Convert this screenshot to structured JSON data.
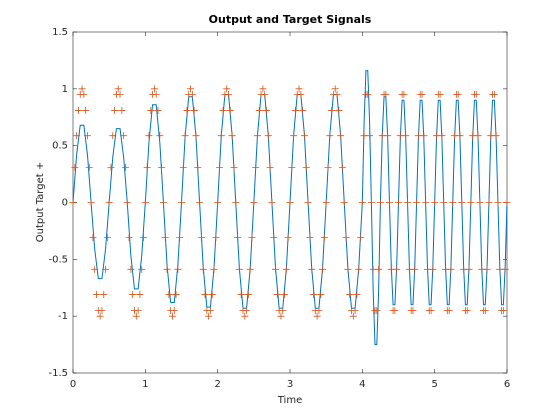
{
  "chart_data": {
    "type": "line",
    "title": "Output and Target Signals",
    "xlabel": "Time",
    "ylabel": "Output   Target +",
    "xlim": [
      0,
      6
    ],
    "ylim": [
      -1.5,
      1.5
    ],
    "xticks": [
      0,
      1,
      2,
      3,
      4,
      5,
      6
    ],
    "yticks": [
      -1.5,
      -1,
      -0.5,
      0,
      0.5,
      1,
      1.5
    ],
    "series": [
      {
        "color": "#0072bd",
        "marker": "none",
        "x": [
          0,
          0.05,
          0.1,
          0.15,
          0.2,
          0.25,
          0.3,
          0.35,
          0.4,
          0.45,
          0.5,
          0.55,
          0.6,
          0.65,
          0.7,
          0.75,
          0.8,
          0.85,
          0.9,
          0.95,
          1,
          1.05,
          1.1,
          1.15,
          1.2,
          1.25,
          1.3,
          1.35,
          1.4,
          1.45,
          1.5,
          1.55,
          1.6,
          1.65,
          1.7,
          1.75,
          1.8,
          1.85,
          1.9,
          1.95,
          2,
          2.05,
          2.1,
          2.15,
          2.2,
          2.25,
          2.3,
          2.35,
          2.4,
          2.45,
          2.5,
          2.55,
          2.6,
          2.65,
          2.7,
          2.75,
          2.8,
          2.85,
          2.9,
          2.95,
          3,
          3.05,
          3.1,
          3.15,
          3.2,
          3.25,
          3.3,
          3.35,
          3.4,
          3.45,
          3.5,
          3.55,
          3.6,
          3.65,
          3.7,
          3.75,
          3.8,
          3.85,
          3.9,
          3.95,
          4,
          4.025,
          4.05,
          4.075,
          4.1,
          4.125,
          4.15,
          4.175,
          4.2,
          4.225,
          4.25,
          4.275,
          4.3,
          4.325,
          4.35,
          4.375,
          4.4,
          4.425,
          4.45,
          4.475,
          4.5,
          4.525,
          4.55,
          4.575,
          4.6,
          4.625,
          4.65,
          4.675,
          4.7,
          4.725,
          4.75,
          4.775,
          4.8,
          4.825,
          4.85,
          4.875,
          4.9,
          4.925,
          4.95,
          4.975,
          5,
          5.025,
          5.05,
          5.075,
          5.1,
          5.125,
          5.15,
          5.175,
          5.2,
          5.225,
          5.25,
          5.275,
          5.3,
          5.325,
          5.35,
          5.375,
          5.4,
          5.425,
          5.45,
          5.475,
          5.5,
          5.525,
          5.55,
          5.575,
          5.6,
          5.625,
          5.65,
          5.675,
          5.7,
          5.725,
          5.75,
          5.775,
          5.8,
          5.825,
          5.85,
          5.875,
          5.9,
          5.925,
          5.95,
          5.975,
          6
        ],
        "values": [
          0,
          0.42,
          0.68,
          0.68,
          0.42,
          0,
          -0.41,
          -0.67,
          -0.67,
          -0.41,
          0,
          0.4,
          0.65,
          0.65,
          0.4,
          0,
          -0.47,
          -0.76,
          -0.76,
          -0.47,
          0,
          0.53,
          0.86,
          0.86,
          0.53,
          0,
          -0.55,
          -0.88,
          -0.88,
          -0.55,
          0,
          0.58,
          0.93,
          0.93,
          0.58,
          0,
          -0.57,
          -0.92,
          -0.92,
          -0.57,
          0,
          0.59,
          0.95,
          0.95,
          0.59,
          0,
          -0.58,
          -0.93,
          -0.93,
          -0.58,
          0,
          0.59,
          0.95,
          0.95,
          0.59,
          0,
          -0.58,
          -0.93,
          -0.93,
          -0.58,
          0,
          0.59,
          0.95,
          0.95,
          0.59,
          0,
          -0.58,
          -0.93,
          -0.93,
          -0.58,
          0,
          0.59,
          0.95,
          0.95,
          0.59,
          0,
          -0.58,
          -0.93,
          -0.93,
          -0.58,
          0,
          0.72,
          1.16,
          1.16,
          0.72,
          0,
          -0.78,
          -1.25,
          -1.25,
          -0.78,
          0,
          0.58,
          0.93,
          0.93,
          0.58,
          0,
          -0.56,
          -0.9,
          -0.9,
          -0.56,
          0,
          0.56,
          0.9,
          0.9,
          0.56,
          0,
          -0.56,
          -0.9,
          -0.9,
          -0.56,
          0,
          0.56,
          0.9,
          0.9,
          0.56,
          0,
          -0.56,
          -0.9,
          -0.9,
          -0.56,
          0,
          0.56,
          0.9,
          0.9,
          0.56,
          0,
          -0.56,
          -0.9,
          -0.9,
          -0.56,
          0,
          0.56,
          0.9,
          0.9,
          0.56,
          0,
          -0.56,
          -0.9,
          -0.9,
          -0.56,
          0,
          0.56,
          0.9,
          0.9,
          0.56,
          0,
          -0.56,
          -0.9,
          -0.9,
          -0.56,
          0,
          0.56,
          0.9,
          0.9,
          0.56,
          0,
          -0.56,
          -0.9,
          -0.9,
          -0.56,
          0
        ]
      },
      {
        "color": "#d95319",
        "marker": "+",
        "x": [
          0,
          0.025,
          0.05,
          0.075,
          0.1,
          0.125,
          0.15,
          0.175,
          0.2,
          0.225,
          0.25,
          0.275,
          0.3,
          0.325,
          0.35,
          0.375,
          0.4,
          0.425,
          0.45,
          0.475,
          0.5,
          0.525,
          0.55,
          0.575,
          0.6,
          0.625,
          0.65,
          0.675,
          0.7,
          0.725,
          0.75,
          0.775,
          0.8,
          0.825,
          0.85,
          0.875,
          0.9,
          0.925,
          0.95,
          0.975,
          1,
          1.025,
          1.05,
          1.075,
          1.1,
          1.125,
          1.15,
          1.175,
          1.2,
          1.225,
          1.25,
          1.275,
          1.3,
          1.325,
          1.35,
          1.375,
          1.4,
          1.425,
          1.45,
          1.475,
          1.5,
          1.525,
          1.55,
          1.575,
          1.6,
          1.625,
          1.65,
          1.675,
          1.7,
          1.725,
          1.75,
          1.775,
          1.8,
          1.825,
          1.85,
          1.875,
          1.9,
          1.925,
          1.95,
          1.975,
          2,
          2.025,
          2.05,
          2.075,
          2.1,
          2.125,
          2.15,
          2.175,
          2.2,
          2.225,
          2.25,
          2.275,
          2.3,
          2.325,
          2.35,
          2.375,
          2.4,
          2.425,
          2.45,
          2.475,
          2.5,
          2.525,
          2.55,
          2.575,
          2.6,
          2.625,
          2.65,
          2.675,
          2.7,
          2.725,
          2.75,
          2.775,
          2.8,
          2.825,
          2.85,
          2.875,
          2.9,
          2.925,
          2.95,
          2.975,
          3,
          3.025,
          3.05,
          3.075,
          3.1,
          3.125,
          3.15,
          3.175,
          3.2,
          3.225,
          3.25,
          3.275,
          3.3,
          3.325,
          3.35,
          3.375,
          3.4,
          3.425,
          3.45,
          3.475,
          3.5,
          3.525,
          3.55,
          3.575,
          3.6,
          3.625,
          3.65,
          3.675,
          3.7,
          3.725,
          3.75,
          3.775,
          3.8,
          3.825,
          3.85,
          3.875,
          3.9,
          3.925,
          3.95,
          3.975,
          4,
          4.025,
          4.05,
          4.075,
          4.1,
          4.125,
          4.15,
          4.175,
          4.2,
          4.225,
          4.25,
          4.275,
          4.3,
          4.325,
          4.35,
          4.375,
          4.4,
          4.425,
          4.45,
          4.475,
          4.5,
          4.525,
          4.55,
          4.575,
          4.6,
          4.625,
          4.65,
          4.675,
          4.7,
          4.725,
          4.75,
          4.775,
          4.8,
          4.825,
          4.85,
          4.875,
          4.9,
          4.925,
          4.95,
          4.975,
          5,
          5.025,
          5.05,
          5.075,
          5.1,
          5.125,
          5.15,
          5.175,
          5.2,
          5.225,
          5.25,
          5.275,
          5.3,
          5.325,
          5.35,
          5.375,
          5.4,
          5.425,
          5.45,
          5.475,
          5.5,
          5.525,
          5.55,
          5.575,
          5.6,
          5.625,
          5.65,
          5.675,
          5.7,
          5.725,
          5.75,
          5.775,
          5.8,
          5.825,
          5.85,
          5.875,
          5.9,
          5.925,
          5.95,
          5.975,
          6
        ],
        "values": [
          0,
          0.309,
          0.588,
          0.809,
          0.951,
          1,
          0.951,
          0.809,
          0.588,
          0.309,
          0,
          -0.309,
          -0.588,
          -0.809,
          -0.951,
          -1,
          -0.951,
          -0.809,
          -0.588,
          -0.309,
          0,
          0.309,
          0.588,
          0.809,
          0.951,
          1,
          0.951,
          0.809,
          0.588,
          0.309,
          0,
          -0.309,
          -0.588,
          -0.809,
          -0.951,
          -1,
          -0.951,
          -0.809,
          -0.588,
          -0.309,
          0,
          0.309,
          0.588,
          0.809,
          0.951,
          1,
          0.951,
          0.809,
          0.588,
          0.309,
          0,
          -0.309,
          -0.588,
          -0.809,
          -0.951,
          -1,
          -0.951,
          -0.809,
          -0.588,
          -0.309,
          0,
          0.309,
          0.588,
          0.809,
          0.951,
          1,
          0.951,
          0.809,
          0.588,
          0.309,
          0,
          -0.309,
          -0.588,
          -0.809,
          -0.951,
          -1,
          -0.951,
          -0.809,
          -0.588,
          -0.309,
          0,
          0.309,
          0.588,
          0.809,
          0.951,
          1,
          0.951,
          0.809,
          0.588,
          0.309,
          0,
          -0.309,
          -0.588,
          -0.809,
          -0.951,
          -1,
          -0.951,
          -0.809,
          -0.588,
          -0.309,
          0,
          0.309,
          0.588,
          0.809,
          0.951,
          1,
          0.951,
          0.809,
          0.588,
          0.309,
          0,
          -0.309,
          -0.588,
          -0.809,
          -0.951,
          -1,
          -0.951,
          -0.809,
          -0.588,
          -0.309,
          0,
          0.309,
          0.588,
          0.809,
          0.951,
          1,
          0.951,
          0.809,
          0.588,
          0.309,
          0,
          -0.309,
          -0.588,
          -0.809,
          -0.951,
          -1,
          -0.951,
          -0.809,
          -0.588,
          -0.309,
          0,
          0.309,
          0.588,
          0.809,
          0.951,
          1,
          0.951,
          0.809,
          0.588,
          0.309,
          0,
          -0.309,
          -0.588,
          -0.809,
          -0.951,
          -1,
          -0.951,
          -0.809,
          -0.588,
          -0.309,
          0,
          0.588,
          0.951,
          0.951,
          0.588,
          0,
          -0.588,
          -0.951,
          -0.951,
          -0.588,
          0,
          0.588,
          0.951,
          0.951,
          0.588,
          0,
          -0.588,
          -0.951,
          -0.951,
          -0.588,
          0,
          0.588,
          0.951,
          0.951,
          0.588,
          0,
          -0.588,
          -0.951,
          -0.951,
          -0.588,
          0,
          0.588,
          0.951,
          0.951,
          0.588,
          0,
          -0.588,
          -0.951,
          -0.951,
          -0.588,
          0,
          0.588,
          0.951,
          0.951,
          0.588,
          0,
          -0.588,
          -0.951,
          -0.951,
          -0.588,
          0,
          0.588,
          0.951,
          0.951,
          0.588,
          0,
          -0.588,
          -0.951,
          -0.951,
          -0.588,
          0,
          0.588,
          0.951,
          0.951,
          0.588,
          0,
          -0.588,
          -0.951,
          -0.951,
          -0.588,
          0,
          0.588,
          0.951,
          0.951,
          0.588,
          0,
          -0.588,
          -0.951,
          -0.951,
          -0.588,
          0
        ]
      }
    ]
  }
}
